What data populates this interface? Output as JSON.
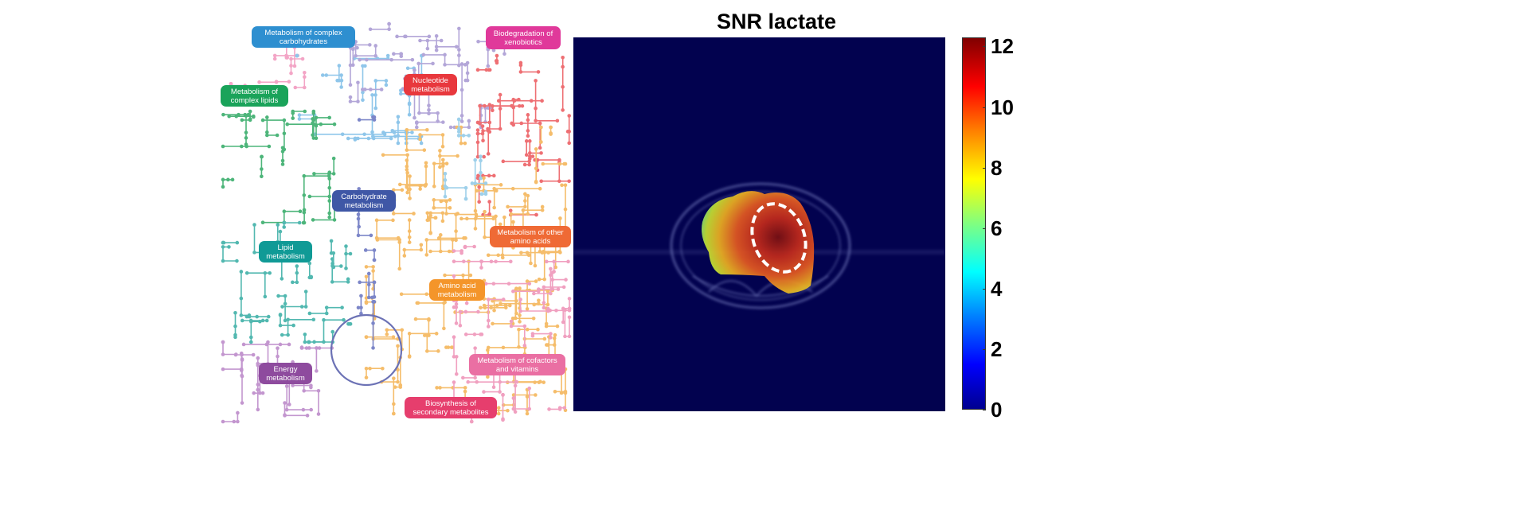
{
  "metabolic_map": {
    "labels": [
      {
        "text": "Metabolism of complex carbohydrates",
        "color": "#2e8fd0"
      },
      {
        "text": "Biodegradation of xenobiotics",
        "color": "#e0399a"
      },
      {
        "text": "Nucleotide metabolism",
        "color": "#e8383d"
      },
      {
        "text": "Metabolism of complex lipids",
        "color": "#1aa35a"
      },
      {
        "text": "Carbohydrate metabolism",
        "color": "#3f57a6"
      },
      {
        "text": "Lipid metabolism",
        "color": "#109a96"
      },
      {
        "text": "Metabolism of other amino acids",
        "color": "#ef6a35"
      },
      {
        "text": "Amino acid metabolism",
        "color": "#f4952a"
      },
      {
        "text": "Energy metabolism",
        "color": "#8e4b9e"
      },
      {
        "text": "Metabolism of cofactors and vitamins",
        "color": "#ea6fa3"
      },
      {
        "text": "Biosynthesis of secondary metabolites",
        "color": "#e63e6d"
      }
    ]
  },
  "heatmap": {
    "title": "SNR lactate",
    "background_color": "#02024f",
    "colormap": "jet",
    "colorbar": {
      "min": 0,
      "max": 12.3,
      "ticks": [
        "0",
        "2",
        "4",
        "6",
        "8",
        "10",
        "12"
      ]
    },
    "roi_outline": "white dashed"
  }
}
